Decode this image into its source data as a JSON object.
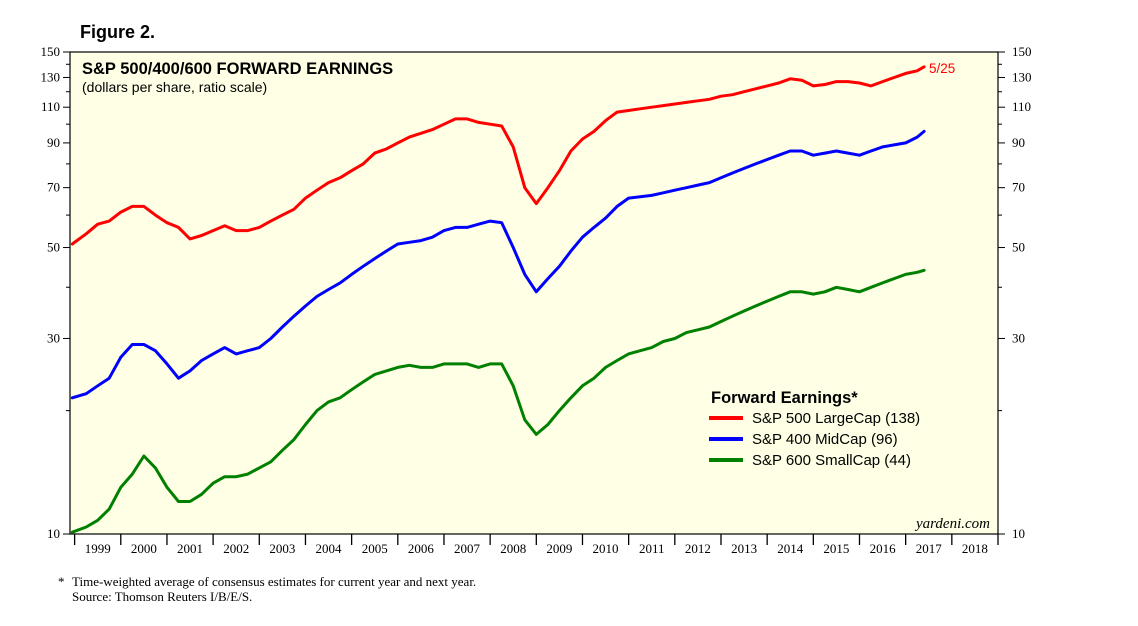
{
  "figure_label": "Figure 2.",
  "footnote": {
    "marker": "*",
    "text": "Time-weighted average of consensus estimates for current year and next year.",
    "source": "Source: Thomson Reuters I/B/E/S."
  },
  "chart_data": {
    "type": "line",
    "title": "S&P 500/400/600 FORWARD EARNINGS",
    "subtitle": "(dollars per share, ratio scale)",
    "xlabel": "",
    "ylabel": "",
    "y_scale": "log",
    "ylim": [
      10,
      150
    ],
    "xlim": [
      1998.9,
      2019.0
    ],
    "y_ticks_major": [
      10,
      30,
      50,
      70,
      90,
      110,
      130,
      150
    ],
    "x_tick_labels": [
      "1999",
      "2000",
      "2001",
      "2002",
      "2003",
      "2004",
      "2005",
      "2006",
      "2007",
      "2008",
      "2009",
      "2010",
      "2011",
      "2012",
      "2013",
      "2014",
      "2015",
      "2016",
      "2017",
      "2018"
    ],
    "grid": false,
    "legend": {
      "title": "Forward Earnings*",
      "placement": "right-center",
      "entries": [
        "S&P 500 LargeCap (138)",
        "S&P 400 MidCap (96)",
        "S&P 600 SmallCap (44)"
      ]
    },
    "end_annotation": "5/25",
    "watermark": "yardeni.com",
    "colors": {
      "background": "#ffffe5",
      "large": "#ff0000",
      "mid": "#0000ff",
      "small": "#008000",
      "annotation": "#ff0000"
    },
    "series": [
      {
        "name": "S&P 500 LargeCap",
        "last_value": 138,
        "points": [
          [
            1998.95,
            51
          ],
          [
            1999.25,
            54
          ],
          [
            1999.5,
            57
          ],
          [
            1999.75,
            58
          ],
          [
            2000.0,
            61
          ],
          [
            2000.25,
            63
          ],
          [
            2000.5,
            63
          ],
          [
            2000.75,
            60
          ],
          [
            2001.0,
            57.5
          ],
          [
            2001.25,
            56
          ],
          [
            2001.5,
            52.5
          ],
          [
            2001.75,
            53.5
          ],
          [
            2002.0,
            55
          ],
          [
            2002.25,
            56.5
          ],
          [
            2002.5,
            55
          ],
          [
            2002.75,
            55
          ],
          [
            2003.0,
            56
          ],
          [
            2003.25,
            58
          ],
          [
            2003.5,
            60
          ],
          [
            2003.75,
            62
          ],
          [
            2004.0,
            66
          ],
          [
            2004.25,
            69
          ],
          [
            2004.5,
            72
          ],
          [
            2004.75,
            74
          ],
          [
            2005.0,
            77
          ],
          [
            2005.25,
            80
          ],
          [
            2005.5,
            85
          ],
          [
            2005.75,
            87
          ],
          [
            2006.0,
            90
          ],
          [
            2006.25,
            93
          ],
          [
            2006.5,
            95
          ],
          [
            2006.75,
            97
          ],
          [
            2007.0,
            100
          ],
          [
            2007.25,
            103
          ],
          [
            2007.5,
            103
          ],
          [
            2007.75,
            101
          ],
          [
            2008.0,
            100
          ],
          [
            2008.25,
            99
          ],
          [
            2008.5,
            88
          ],
          [
            2008.75,
            70
          ],
          [
            2009.0,
            64
          ],
          [
            2009.25,
            70
          ],
          [
            2009.5,
            77
          ],
          [
            2009.75,
            86
          ],
          [
            2010.0,
            92
          ],
          [
            2010.25,
            96
          ],
          [
            2010.5,
            102
          ],
          [
            2010.75,
            107
          ],
          [
            2011.0,
            108
          ],
          [
            2011.25,
            109
          ],
          [
            2011.5,
            110
          ],
          [
            2011.75,
            111
          ],
          [
            2012.0,
            112
          ],
          [
            2012.25,
            113
          ],
          [
            2012.5,
            114
          ],
          [
            2012.75,
            115
          ],
          [
            2013.0,
            117
          ],
          [
            2013.25,
            118
          ],
          [
            2013.5,
            120
          ],
          [
            2013.75,
            122
          ],
          [
            2014.0,
            124
          ],
          [
            2014.25,
            126
          ],
          [
            2014.5,
            129
          ],
          [
            2014.75,
            128
          ],
          [
            2015.0,
            124
          ],
          [
            2015.25,
            125
          ],
          [
            2015.5,
            127
          ],
          [
            2015.75,
            127
          ],
          [
            2016.0,
            126
          ],
          [
            2016.25,
            124
          ],
          [
            2016.5,
            127
          ],
          [
            2016.75,
            130
          ],
          [
            2017.0,
            133
          ],
          [
            2017.25,
            135
          ],
          [
            2017.4,
            138
          ]
        ]
      },
      {
        "name": "S&P 400 MidCap",
        "last_value": 96,
        "points": [
          [
            1998.95,
            21.5
          ],
          [
            1999.25,
            22
          ],
          [
            1999.5,
            23
          ],
          [
            1999.75,
            24
          ],
          [
            2000.0,
            27
          ],
          [
            2000.25,
            29
          ],
          [
            2000.5,
            29
          ],
          [
            2000.75,
            28
          ],
          [
            2001.0,
            26
          ],
          [
            2001.25,
            24
          ],
          [
            2001.5,
            25
          ],
          [
            2001.75,
            26.5
          ],
          [
            2002.0,
            27.5
          ],
          [
            2002.25,
            28.5
          ],
          [
            2002.5,
            27.5
          ],
          [
            2002.75,
            28
          ],
          [
            2003.0,
            28.5
          ],
          [
            2003.25,
            30
          ],
          [
            2003.5,
            32
          ],
          [
            2003.75,
            34
          ],
          [
            2004.0,
            36
          ],
          [
            2004.25,
            38
          ],
          [
            2004.5,
            39.5
          ],
          [
            2004.75,
            41
          ],
          [
            2005.0,
            43
          ],
          [
            2005.25,
            45
          ],
          [
            2005.5,
            47
          ],
          [
            2005.75,
            49
          ],
          [
            2006.0,
            51
          ],
          [
            2006.25,
            51.5
          ],
          [
            2006.5,
            52
          ],
          [
            2006.75,
            53
          ],
          [
            2007.0,
            55
          ],
          [
            2007.25,
            56
          ],
          [
            2007.5,
            56
          ],
          [
            2007.75,
            57
          ],
          [
            2008.0,
            58
          ],
          [
            2008.25,
            57.5
          ],
          [
            2008.5,
            50
          ],
          [
            2008.75,
            43
          ],
          [
            2009.0,
            39
          ],
          [
            2009.25,
            42
          ],
          [
            2009.5,
            45
          ],
          [
            2009.75,
            49
          ],
          [
            2010.0,
            53
          ],
          [
            2010.25,
            56
          ],
          [
            2010.5,
            59
          ],
          [
            2010.75,
            63
          ],
          [
            2011.0,
            66
          ],
          [
            2011.25,
            66.5
          ],
          [
            2011.5,
            67
          ],
          [
            2011.75,
            68
          ],
          [
            2012.0,
            69
          ],
          [
            2012.25,
            70
          ],
          [
            2012.5,
            71
          ],
          [
            2012.75,
            72
          ],
          [
            2013.0,
            74
          ],
          [
            2013.25,
            76
          ],
          [
            2013.5,
            78
          ],
          [
            2013.75,
            80
          ],
          [
            2014.0,
            82
          ],
          [
            2014.25,
            84
          ],
          [
            2014.5,
            86
          ],
          [
            2014.75,
            86
          ],
          [
            2015.0,
            84
          ],
          [
            2015.25,
            85
          ],
          [
            2015.5,
            86
          ],
          [
            2015.75,
            85
          ],
          [
            2016.0,
            84
          ],
          [
            2016.25,
            86
          ],
          [
            2016.5,
            88
          ],
          [
            2016.75,
            89
          ],
          [
            2017.0,
            90
          ],
          [
            2017.25,
            93
          ],
          [
            2017.4,
            96
          ]
        ]
      },
      {
        "name": "S&P 600 SmallCap",
        "last_value": 44,
        "points": [
          [
            1998.95,
            10.1
          ],
          [
            1999.25,
            10.4
          ],
          [
            1999.5,
            10.8
          ],
          [
            1999.75,
            11.5
          ],
          [
            2000.0,
            13
          ],
          [
            2000.25,
            14
          ],
          [
            2000.5,
            15.5
          ],
          [
            2000.75,
            14.5
          ],
          [
            2001.0,
            13
          ],
          [
            2001.25,
            12
          ],
          [
            2001.5,
            12
          ],
          [
            2001.75,
            12.5
          ],
          [
            2002.0,
            13.3
          ],
          [
            2002.25,
            13.8
          ],
          [
            2002.5,
            13.8
          ],
          [
            2002.75,
            14
          ],
          [
            2003.0,
            14.5
          ],
          [
            2003.25,
            15
          ],
          [
            2003.5,
            16
          ],
          [
            2003.75,
            17
          ],
          [
            2004.0,
            18.5
          ],
          [
            2004.25,
            20
          ],
          [
            2004.5,
            21
          ],
          [
            2004.75,
            21.5
          ],
          [
            2005.0,
            22.5
          ],
          [
            2005.25,
            23.5
          ],
          [
            2005.5,
            24.5
          ],
          [
            2005.75,
            25
          ],
          [
            2006.0,
            25.5
          ],
          [
            2006.25,
            25.8
          ],
          [
            2006.5,
            25.5
          ],
          [
            2006.75,
            25.5
          ],
          [
            2007.0,
            26
          ],
          [
            2007.25,
            26
          ],
          [
            2007.5,
            26
          ],
          [
            2007.75,
            25.5
          ],
          [
            2008.0,
            26
          ],
          [
            2008.25,
            26
          ],
          [
            2008.5,
            23
          ],
          [
            2008.75,
            19
          ],
          [
            2009.0,
            17.5
          ],
          [
            2009.25,
            18.5
          ],
          [
            2009.5,
            20
          ],
          [
            2009.75,
            21.5
          ],
          [
            2010.0,
            23
          ],
          [
            2010.25,
            24
          ],
          [
            2010.5,
            25.5
          ],
          [
            2010.75,
            26.5
          ],
          [
            2011.0,
            27.5
          ],
          [
            2011.25,
            28
          ],
          [
            2011.5,
            28.5
          ],
          [
            2011.75,
            29.5
          ],
          [
            2012.0,
            30
          ],
          [
            2012.25,
            31
          ],
          [
            2012.5,
            31.5
          ],
          [
            2012.75,
            32
          ],
          [
            2013.0,
            33
          ],
          [
            2013.25,
            34
          ],
          [
            2013.5,
            35
          ],
          [
            2013.75,
            36
          ],
          [
            2014.0,
            37
          ],
          [
            2014.25,
            38
          ],
          [
            2014.5,
            39
          ],
          [
            2014.75,
            39
          ],
          [
            2015.0,
            38.5
          ],
          [
            2015.25,
            39
          ],
          [
            2015.5,
            40
          ],
          [
            2015.75,
            39.5
          ],
          [
            2016.0,
            39
          ],
          [
            2016.25,
            40
          ],
          [
            2016.5,
            41
          ],
          [
            2016.75,
            42
          ],
          [
            2017.0,
            43
          ],
          [
            2017.25,
            43.5
          ],
          [
            2017.4,
            44
          ]
        ]
      }
    ]
  }
}
